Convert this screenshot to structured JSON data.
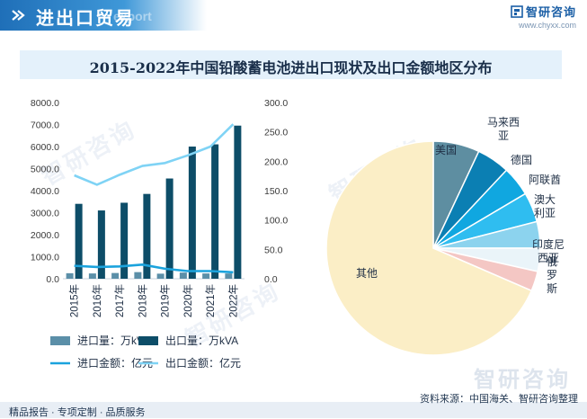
{
  "header": {
    "title": "进出口贸易",
    "subtitle": "export",
    "brand_name": "智研咨询",
    "brand_url": "www.chyxx.com"
  },
  "title": "2015-2022年中国铅酸蓄电池进出口现状及出口金额地区分布",
  "watermark": "智研咨询",
  "footer": {
    "left": "精品报告 · 专项定制 · 品质服务",
    "source": "资料来源：中国海关、智研咨询整理"
  },
  "colors": {
    "import_volume": "#5b8fa8",
    "export_volume": "#0d4d68",
    "import_amount": "#1ba3dd",
    "export_amount": "#7fd3f5"
  },
  "chart_data": [
    {
      "type": "bar",
      "categories": [
        "2015年",
        "2016年",
        "2017年",
        "2018年",
        "2019年",
        "2020年",
        "2021年",
        "2022年"
      ],
      "ylim": [
        0,
        8000
      ],
      "yticks": [
        "0.0",
        "1000.0",
        "2000.0",
        "3000.0",
        "4000.0",
        "5000.0",
        "6000.0",
        "7000.0",
        "8000.0"
      ],
      "y2lim": [
        0,
        300
      ],
      "y2ticks": [
        "0.0",
        "50.0",
        "100.0",
        "150.0",
        "200.0",
        "250.0",
        "300.0"
      ],
      "series": [
        {
          "name": "进口量：万kVA",
          "type": "bar",
          "axis": "left",
          "values": [
            250,
            240,
            260,
            300,
            230,
            280,
            240,
            240
          ]
        },
        {
          "name": "出口量：万kVA",
          "type": "bar",
          "axis": "left",
          "values": [
            3400,
            3100,
            3450,
            3850,
            4550,
            6000,
            6100,
            6950
          ]
        },
        {
          "name": "进口金额：亿元",
          "type": "line",
          "axis": "right",
          "values": [
            22,
            20,
            21,
            24,
            17,
            13,
            13,
            11
          ]
        },
        {
          "name": "出口金额：亿元",
          "type": "line",
          "axis": "right",
          "values": [
            176,
            160,
            177,
            192,
            197,
            210,
            225,
            263
          ]
        }
      ]
    },
    {
      "type": "pie",
      "slices": [
        {
          "label": "美国",
          "value": 7.0,
          "color": "#5e8ea1"
        },
        {
          "label": "马来西亚",
          "value": 5.0,
          "color": "#0b7fb3"
        },
        {
          "label": "德国",
          "value": 4.5,
          "color": "#10a7e0"
        },
        {
          "label": "阿联酋",
          "value": 4.5,
          "color": "#2fbdf0"
        },
        {
          "label": "澳大利亚",
          "value": 4.0,
          "color": "#8cd3ee"
        },
        {
          "label": "印度尼西亚",
          "value": 3.5,
          "color": "#eaf4f9"
        },
        {
          "label": "俄罗斯",
          "value": 3.0,
          "color": "#f4c7c4"
        },
        {
          "label": "其他",
          "value": 68.5,
          "color": "#fbeec6"
        }
      ]
    }
  ]
}
